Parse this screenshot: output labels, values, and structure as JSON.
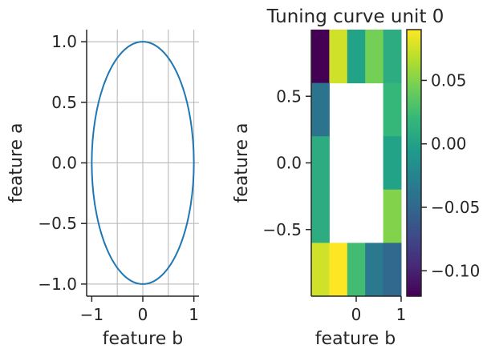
{
  "chart_data": [
    {
      "type": "line",
      "curve": "ellipse",
      "series": [
        {
          "x_center": 0,
          "y_center": 0,
          "x_radius": 1.0,
          "y_radius": 1.0,
          "color": "#1f77b4"
        }
      ],
      "xlabel": "feature b",
      "ylabel": "feature a",
      "xlim": [
        -1.1,
        1.1
      ],
      "ylim": [
        -1.1,
        1.1
      ],
      "xticks": [
        -1,
        0,
        1
      ],
      "xtick_labels": [
        "−1",
        "0",
        "1"
      ],
      "yticks": [
        1.0,
        0.5,
        0.0,
        -0.5,
        -1.0
      ],
      "ytick_labels": [
        "1.0",
        "0.5",
        "0.0",
        "−0.5",
        "−1.0"
      ],
      "grid": true,
      "x_gridlines": [
        -0.5,
        0,
        0.5,
        1
      ],
      "y_gridlines": [
        1.0,
        0.5,
        0.0,
        -0.5,
        -1.0
      ]
    },
    {
      "type": "heatmap",
      "title": "Tuning curve unit 0",
      "xlabel": "feature b",
      "ylabel": "feature a",
      "xlim": [
        -1,
        1
      ],
      "ylim": [
        -1,
        1
      ],
      "xticks": [
        0,
        1
      ],
      "xtick_labels": [
        "0",
        "1"
      ],
      "yticks": [
        0.5,
        0.0,
        -0.5
      ],
      "ytick_labels": [
        "0.5",
        "0.0",
        "−0.5"
      ],
      "n_cols": 5,
      "n_rows": 5,
      "row_order": "top-to-bottom",
      "values": [
        [
          -0.12,
          0.075,
          0.0,
          0.045,
          0.01
        ],
        [
          -0.04,
          null,
          null,
          null,
          0.02
        ],
        [
          0.01,
          null,
          null,
          null,
          0.0
        ],
        [
          0.01,
          null,
          null,
          null,
          0.05
        ],
        [
          0.075,
          0.09,
          0.025,
          -0.035,
          -0.05
        ]
      ],
      "colormap": "viridis",
      "colorbar": {
        "vmin": -0.12,
        "vmax": 0.09,
        "ticks": [
          0.05,
          0.0,
          -0.05,
          -0.1
        ],
        "tick_labels": [
          "0.05",
          "0.00",
          "−0.05",
          "−0.10"
        ]
      }
    }
  ]
}
